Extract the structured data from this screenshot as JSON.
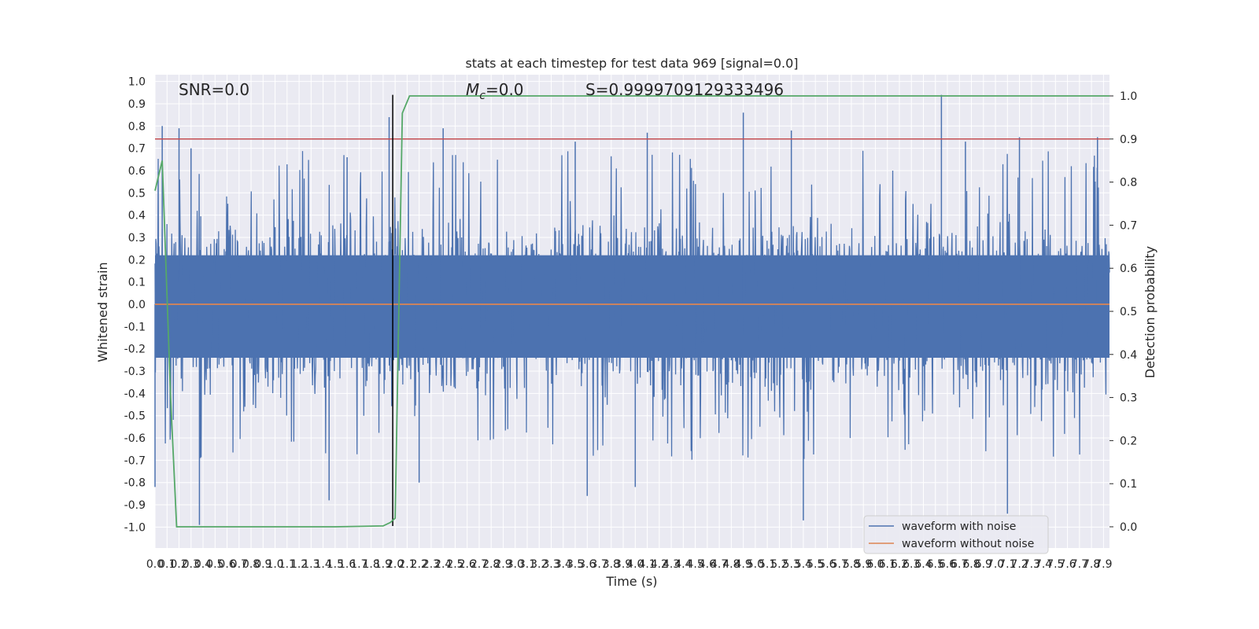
{
  "chart_data": {
    "type": "line",
    "title": "stats at each timestep for test data 969 [signal=0.0]",
    "xlabel": "Time (s)",
    "ylabel": "Whitened strain",
    "ylabel_right": "Detection probability",
    "xlim": [
      0.0,
      7.95
    ],
    "ylim": [
      -1.1,
      1.05
    ],
    "ylim_right": [
      -0.05,
      1.03
    ],
    "grid": true,
    "x_ticks": [
      "0.0",
      "0.1",
      "0.2",
      "0.3",
      "0.4",
      "0.5",
      "0.6",
      "0.7",
      "0.8",
      "0.9",
      "1.0",
      "1.1",
      "1.2",
      "1.3",
      "1.4",
      "1.5",
      "1.6",
      "1.7",
      "1.8",
      "1.9",
      "2.0",
      "2.1",
      "2.2",
      "2.3",
      "2.4",
      "2.5",
      "2.6",
      "2.7",
      "2.8",
      "2.9",
      "3.0",
      "3.1",
      "3.2",
      "3.3",
      "3.4",
      "3.5",
      "3.6",
      "3.7",
      "3.8",
      "3.9",
      "4.0",
      "4.1",
      "4.2",
      "4.3",
      "4.4",
      "4.5",
      "4.6",
      "4.7",
      "4.8",
      "4.9",
      "5.0",
      "5.1",
      "5.2",
      "5.3",
      "5.4",
      "5.5",
      "5.6",
      "5.7",
      "5.8",
      "5.9",
      "6.0",
      "6.1",
      "6.2",
      "6.3",
      "6.4",
      "6.5",
      "6.6",
      "6.7",
      "6.8",
      "6.9",
      "7.0",
      "7.1",
      "7.2",
      "7.3",
      "7.4",
      "7.5",
      "7.6",
      "7.7",
      "7.8",
      "7.9"
    ],
    "y_ticks": [
      "1.0",
      "0.9",
      "0.8",
      "0.7",
      "0.6",
      "0.5",
      "0.4",
      "0.3",
      "0.2",
      "0.1",
      "0.0",
      "-0.1",
      "-0.2",
      "-0.3",
      "-0.4",
      "-0.5",
      "-0.6",
      "-0.7",
      "-0.8",
      "-0.9",
      "-1.0"
    ],
    "y_ticks_right": [
      "1.0",
      "0.9",
      "0.8",
      "0.7",
      "0.6",
      "0.5",
      "0.4",
      "0.3",
      "0.2",
      "0.1",
      "0.0"
    ],
    "annotations": {
      "snr": "SNR=0.0",
      "mc_symbol": "M",
      "mc_sub": "c",
      "mc_value": "=0.0",
      "score": "S=0.9999709129333496"
    },
    "series": [
      {
        "name": "waveform with noise",
        "axis": "left",
        "color": "#4c72b0",
        "description_peaks": {
          "x": [
            0.06,
            0.2,
            0.3,
            1.6,
            1.95,
            2.4,
            3.5,
            4.1,
            4.9,
            5.3,
            6.55,
            6.75,
            7.2,
            7.85
          ],
          "max": [
            0.8,
            0.79,
            0.7,
            0.66,
            0.84,
            0.79,
            0.73,
            0.77,
            0.86,
            0.78,
            0.94,
            0.73,
            0.75,
            0.75
          ]
        }
      },
      {
        "name": "waveform without noise",
        "axis": "left",
        "color": "#dd8452",
        "x": [
          0.0,
          7.95
        ],
        "y": [
          0.0,
          0.0
        ]
      },
      {
        "name": "detection probability",
        "axis": "right",
        "color": "#55a868",
        "x": [
          0.0,
          0.06,
          0.13,
          0.18,
          0.2,
          1.0,
          1.5,
          1.9,
          1.96,
          2.0,
          2.06,
          2.12,
          7.95
        ],
        "y": [
          0.78,
          0.85,
          0.3,
          0.0,
          0.0,
          0.0,
          0.0,
          0.002,
          0.01,
          0.02,
          0.96,
          1.0,
          1.0
        ]
      }
    ],
    "threshold": {
      "axis": "right",
      "value": 0.9,
      "color": "#c44e52"
    },
    "marker_line": {
      "x": 1.98,
      "y": [
        -0.995,
        0.94
      ],
      "color": "#000000"
    },
    "legend": {
      "placement": "lower-right",
      "entries": [
        {
          "label": "waveform with noise",
          "color": "#4c72b0"
        },
        {
          "label": "waveform without noise",
          "color": "#dd8452"
        }
      ]
    },
    "colors": {
      "background": "#eaeaf2",
      "grid": "#ffffff"
    }
  }
}
